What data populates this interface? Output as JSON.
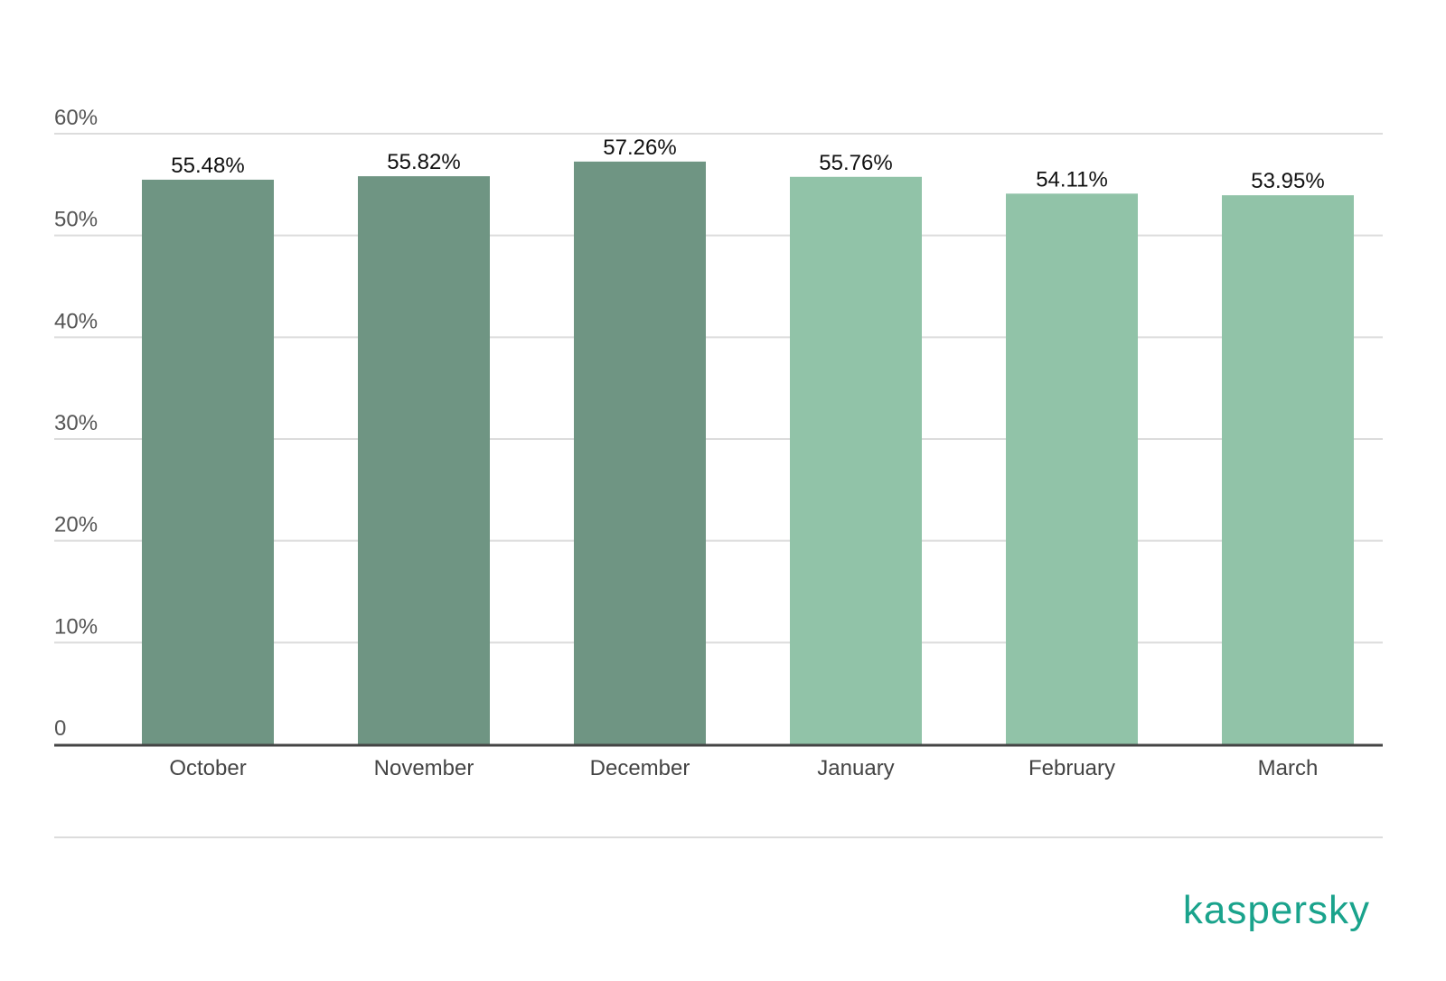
{
  "chart_data": {
    "type": "bar",
    "categories": [
      "October",
      "November",
      "December",
      "January",
      "February",
      "March"
    ],
    "values": [
      55.48,
      55.82,
      57.26,
      55.76,
      54.11,
      53.95
    ],
    "data_labels": [
      "55.48%",
      "55.82%",
      "57.26%",
      "55.76%",
      "54.11%",
      "53.95%"
    ],
    "bar_colors": [
      "#6f9583",
      "#6f9583",
      "#6f9583",
      "#91c3a8",
      "#91c3a8",
      "#91c3a8"
    ],
    "ylim": [
      0,
      60
    ],
    "y_ticks": [
      0,
      10,
      20,
      30,
      40,
      50,
      60
    ],
    "y_tick_labels": [
      "0",
      "10%",
      "20%",
      "30%",
      "40%",
      "50%",
      "60%"
    ],
    "grid": true,
    "title": "",
    "xlabel": "",
    "ylabel": ""
  },
  "brand": {
    "logo_text": "kaspersky",
    "color": "#1aa38c"
  }
}
